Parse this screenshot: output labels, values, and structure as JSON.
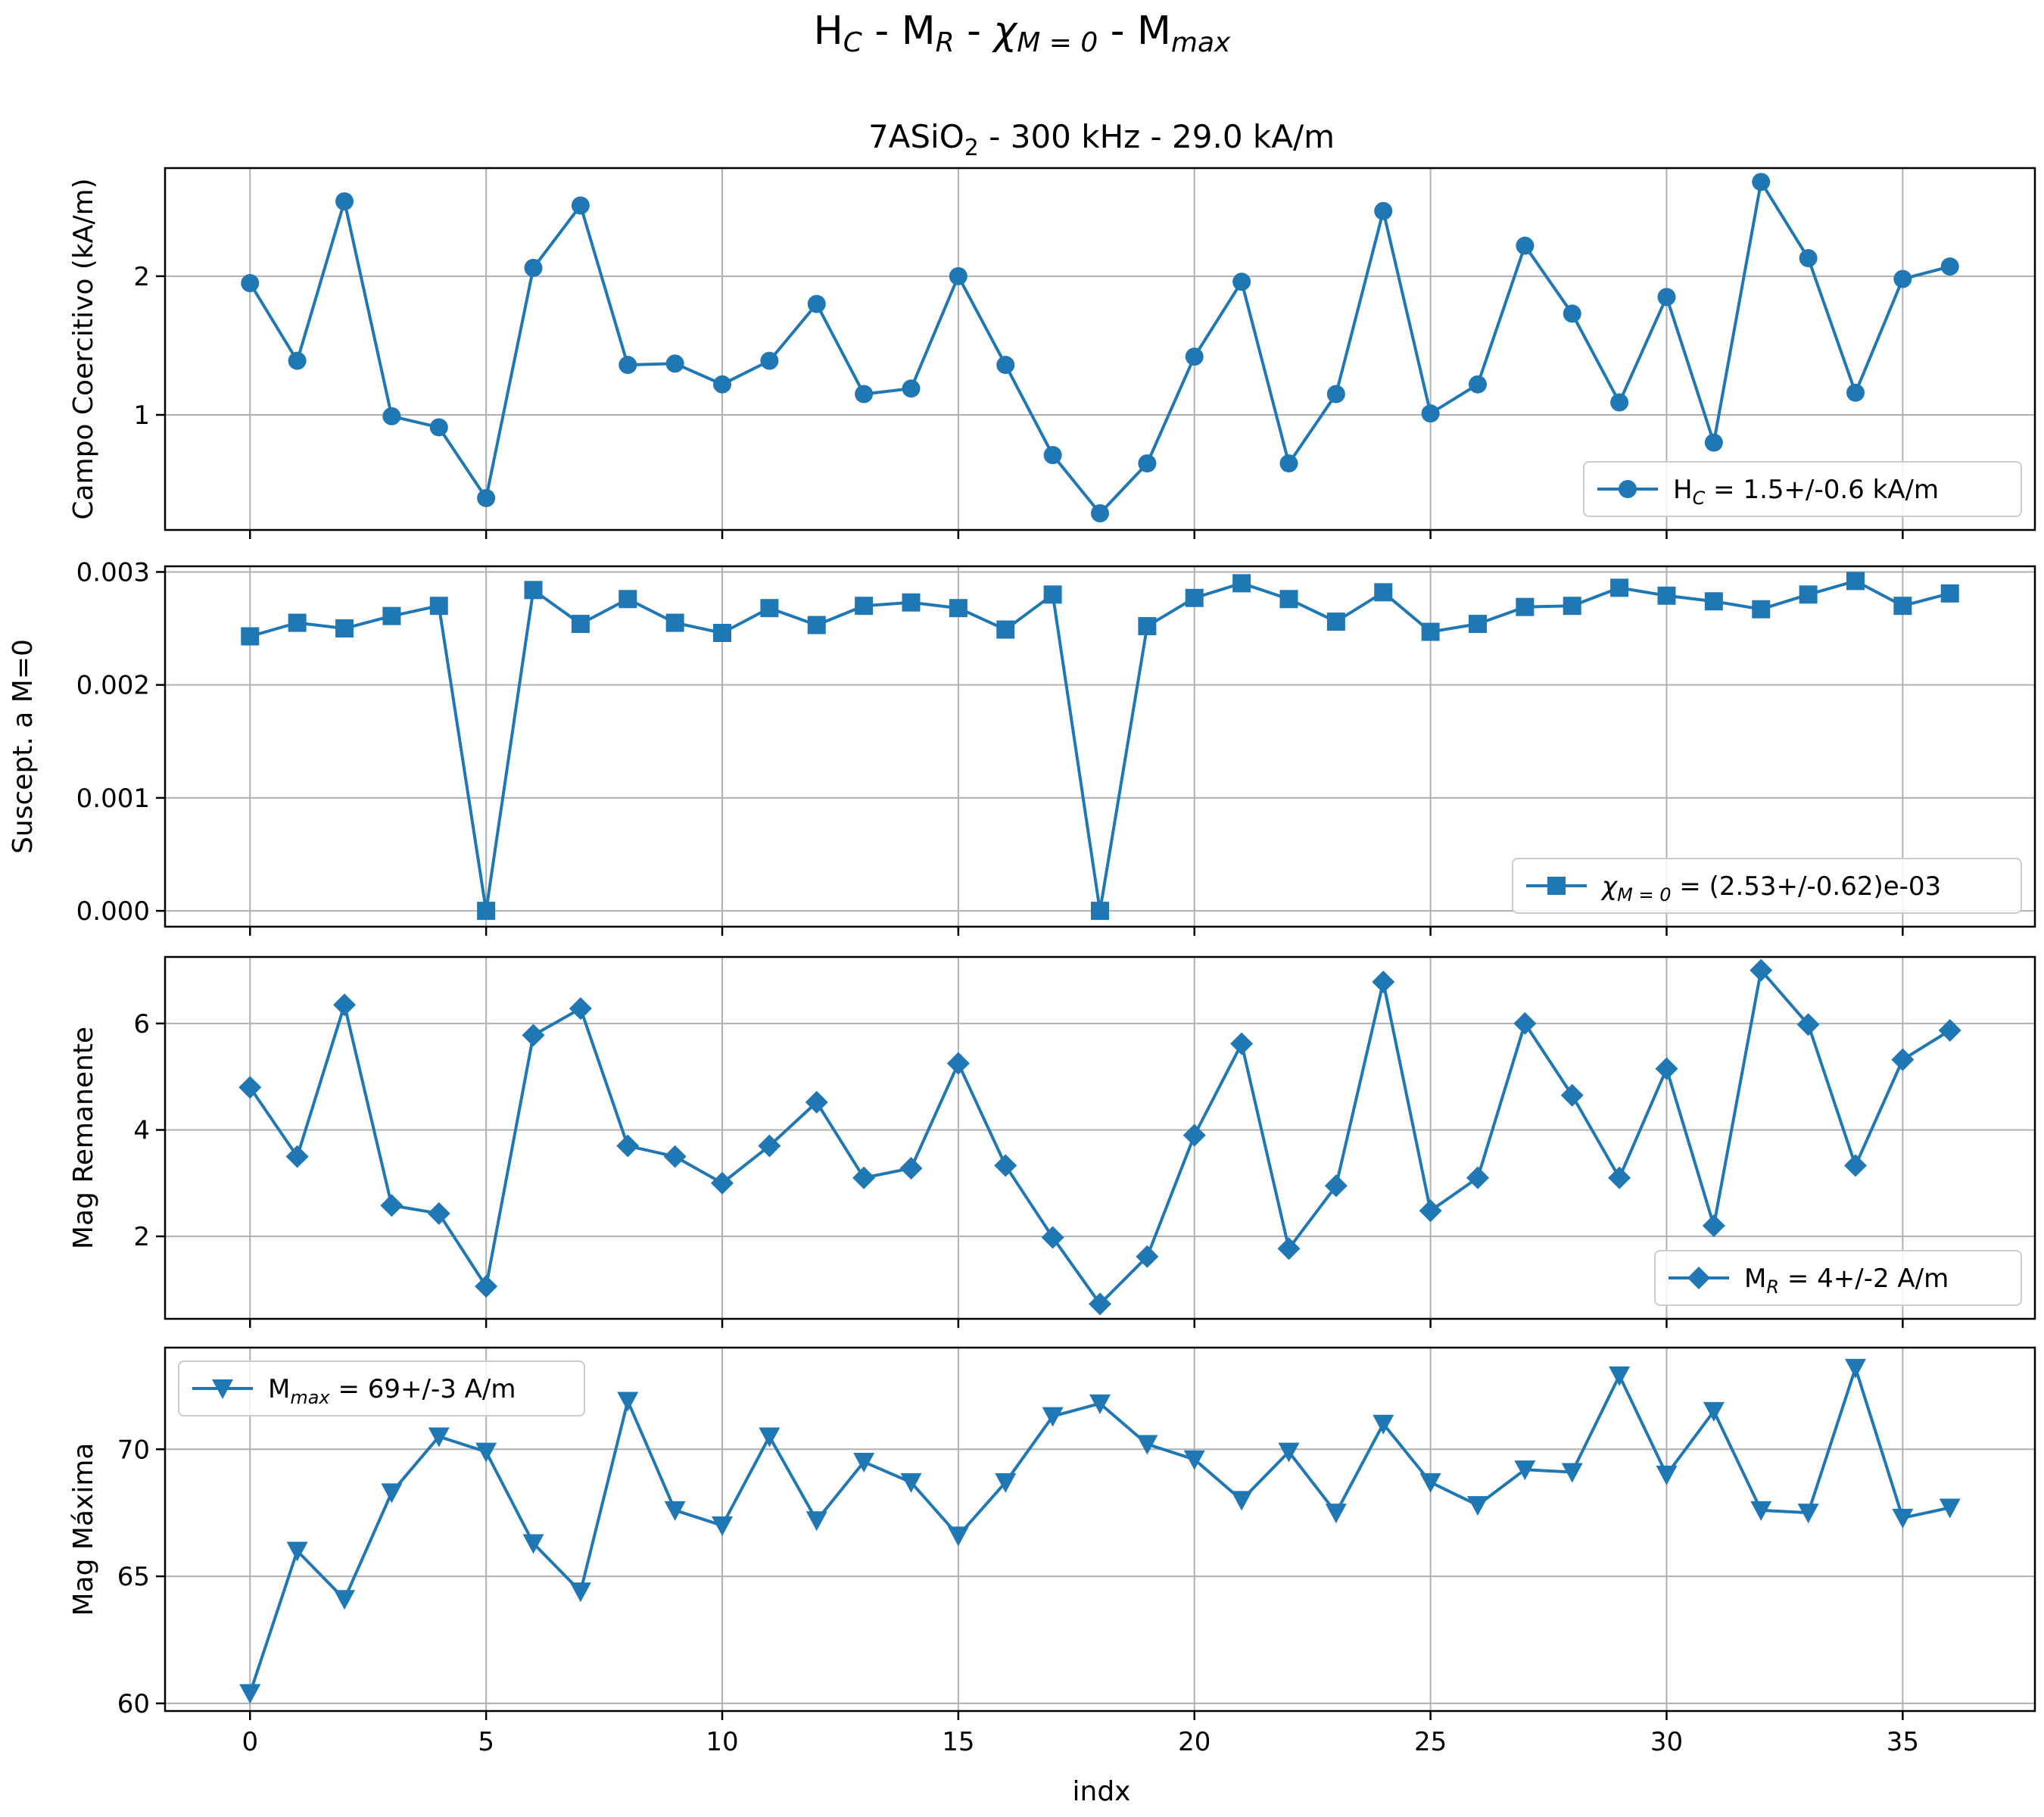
{
  "chart_data": {
    "type": "line",
    "title": {
      "main": "H",
      "sub": "C",
      "rest": " - M",
      "sub2": "R",
      "rest2": " - ",
      "chi": "χ",
      "chiSub": "M = 0",
      "rest3": " - M",
      "sub3": "max"
    },
    "subtitle": {
      "pre": "7ASiO",
      "sub": "2",
      "post": " - 300 kHz - 29.0 kA/m"
    },
    "xlabel": "indx",
    "xlim": [
      -1.8,
      37.8
    ],
    "xticks": [
      0,
      5,
      10,
      15,
      20,
      25,
      30,
      35
    ],
    "grid": true,
    "color": "#1f77b4",
    "panels": [
      {
        "ylabel": "Campo Coercitivo (kA/m)",
        "ylim": [
          0.17,
          2.78
        ],
        "yticks": [
          1,
          2
        ],
        "ytick_labels": [
          "1",
          "2"
        ],
        "marker": "circle",
        "legend": {
          "pre": "H",
          "sub": "C",
          "post": " = 1.5+/-0.6 kA/m",
          "position": "lower-right"
        },
        "x": [
          0,
          1,
          2,
          3,
          4,
          5,
          6,
          7,
          8,
          9,
          10,
          11,
          12,
          13,
          14,
          15,
          16,
          17,
          18,
          19,
          20,
          21,
          22,
          23,
          24,
          25,
          26,
          27,
          28,
          29,
          30,
          31,
          32,
          33,
          34,
          35,
          36
        ],
        "y": [
          1.95,
          1.39,
          2.54,
          0.99,
          0.91,
          0.4,
          2.06,
          2.51,
          1.36,
          1.37,
          1.22,
          1.39,
          1.8,
          1.15,
          1.19,
          2.0,
          1.36,
          0.71,
          0.29,
          0.65,
          1.42,
          1.96,
          0.65,
          1.15,
          2.47,
          1.01,
          1.22,
          2.22,
          1.73,
          1.09,
          1.85,
          0.8,
          2.68,
          2.13,
          1.16,
          1.98,
          2.07
        ]
      },
      {
        "ylabel": "Suscept. a M=0",
        "ylim": [
          -0.00014,
          0.00305
        ],
        "yticks": [
          0,
          0.001,
          0.002,
          0.003
        ],
        "ytick_labels": [
          "0.000",
          "0.001",
          "0.002",
          "0.003"
        ],
        "marker": "square",
        "legend": {
          "pre": "χ",
          "sub": "M = 0",
          "post": " = (2.53+/-0.62)e-03",
          "italic": true,
          "position": "lower-right"
        },
        "x": [
          0,
          1,
          2,
          3,
          4,
          5,
          6,
          7,
          8,
          9,
          10,
          11,
          12,
          13,
          14,
          15,
          16,
          17,
          18,
          19,
          20,
          21,
          22,
          23,
          24,
          25,
          26,
          27,
          28,
          29,
          30,
          31,
          32,
          33,
          34,
          35,
          36
        ],
        "y": [
          0.00243,
          0.00255,
          0.0025,
          0.00261,
          0.0027,
          0.0,
          0.00284,
          0.00254,
          0.00276,
          0.00255,
          0.00246,
          0.00268,
          0.00253,
          0.0027,
          0.00273,
          0.00268,
          0.00249,
          0.0028,
          0.0,
          0.00252,
          0.00277,
          0.0029,
          0.00276,
          0.00256,
          0.00282,
          0.00247,
          0.00254,
          0.00269,
          0.0027,
          0.00286,
          0.00279,
          0.00274,
          0.00267,
          0.0028,
          0.00292,
          0.0027,
          0.00281
        ]
      },
      {
        "ylabel": "Mag Remanente",
        "ylim": [
          0.45,
          7.25
        ],
        "yticks": [
          2,
          4,
          6
        ],
        "ytick_labels": [
          "2",
          "4",
          "6"
        ],
        "marker": "diamond",
        "legend": {
          "pre": "M",
          "sub": "R",
          "post": " = 4+/-2 A/m",
          "position": "lower-right"
        },
        "x": [
          0,
          1,
          2,
          3,
          4,
          5,
          6,
          7,
          8,
          9,
          10,
          11,
          12,
          13,
          14,
          15,
          16,
          17,
          18,
          19,
          20,
          21,
          22,
          23,
          24,
          25,
          26,
          27,
          28,
          29,
          30,
          31,
          32,
          33,
          34,
          35,
          36
        ],
        "y": [
          4.8,
          3.5,
          6.35,
          2.58,
          2.43,
          1.06,
          5.78,
          6.28,
          3.7,
          3.5,
          3.0,
          3.7,
          4.52,
          3.1,
          3.28,
          5.25,
          3.33,
          1.98,
          0.73,
          1.62,
          3.9,
          5.62,
          1.77,
          2.95,
          6.78,
          2.48,
          3.1,
          6.0,
          4.65,
          3.1,
          5.15,
          2.2,
          7.0,
          5.98,
          3.33,
          5.32,
          5.87
        ]
      },
      {
        "ylabel": "Mag Máxima",
        "ylim": [
          59.7,
          74.0
        ],
        "yticks": [
          60,
          65,
          70
        ],
        "ytick_labels": [
          "60",
          "65",
          "70"
        ],
        "marker": "triangle-down",
        "legend": {
          "pre": "M",
          "sub": "max",
          "post": " = 69+/-3 A/m",
          "position": "upper-left"
        },
        "x": [
          0,
          1,
          2,
          3,
          4,
          5,
          6,
          7,
          8,
          9,
          10,
          11,
          12,
          13,
          14,
          15,
          16,
          17,
          18,
          19,
          20,
          21,
          22,
          23,
          24,
          25,
          26,
          27,
          28,
          29,
          30,
          31,
          32,
          33,
          34,
          35,
          36
        ],
        "y": [
          60.4,
          66.0,
          64.1,
          68.3,
          70.5,
          69.9,
          66.3,
          64.4,
          71.9,
          67.6,
          67.0,
          70.5,
          67.2,
          69.5,
          68.7,
          66.6,
          68.7,
          71.3,
          71.8,
          70.2,
          69.6,
          68.0,
          69.9,
          67.5,
          71.0,
          68.7,
          67.8,
          69.2,
          69.1,
          72.9,
          69.0,
          71.5,
          67.6,
          67.5,
          73.2,
          67.3,
          67.7
        ]
      }
    ]
  }
}
